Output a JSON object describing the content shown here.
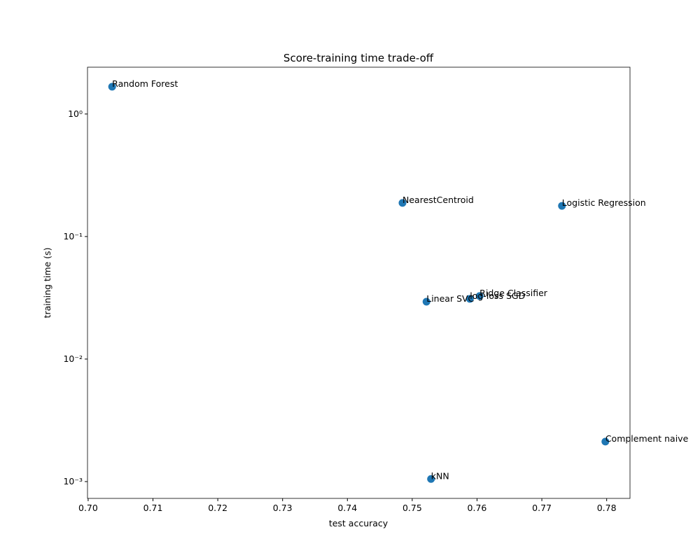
{
  "chart_data": {
    "type": "scatter",
    "title": "Score-training time trade-off",
    "x_label": "test accuracy",
    "y_label": "training time (s)",
    "y_scale": "log",
    "color": "#1f77b4",
    "labels": [
      "Random Forest",
      "NearestCentroid",
      "Logistic Regression",
      "Ridge Classifier",
      "log-loss SGD",
      "Linear SVC",
      "Complement naive",
      "kNN"
    ],
    "x": [
      0.7037,
      0.7485,
      0.7731,
      0.7604,
      0.7589,
      0.7522,
      0.7798,
      0.7529
    ],
    "y": [
      1.67,
      0.188,
      0.178,
      0.0327,
      0.031,
      0.0294,
      0.00212,
      0.00105
    ],
    "xlim": [
      0.6999,
      0.7836
    ],
    "ylim": [
      0.000729,
      2.41
    ],
    "xticks": [
      {
        "value": 0.7,
        "label": "0.70"
      },
      0.71,
      0.72,
      0.73,
      0.74,
      0.75,
      0.76,
      0.77,
      0.78
    ],
    "yticks": [
      {
        "value": 0.001,
        "label": "10⁻³"
      },
      {
        "value": 0.01,
        "label": "10⁻²"
      },
      {
        "value": 0.1,
        "label": "10⁻¹"
      },
      {
        "value": 1,
        "label": "10⁰"
      }
    ]
  }
}
